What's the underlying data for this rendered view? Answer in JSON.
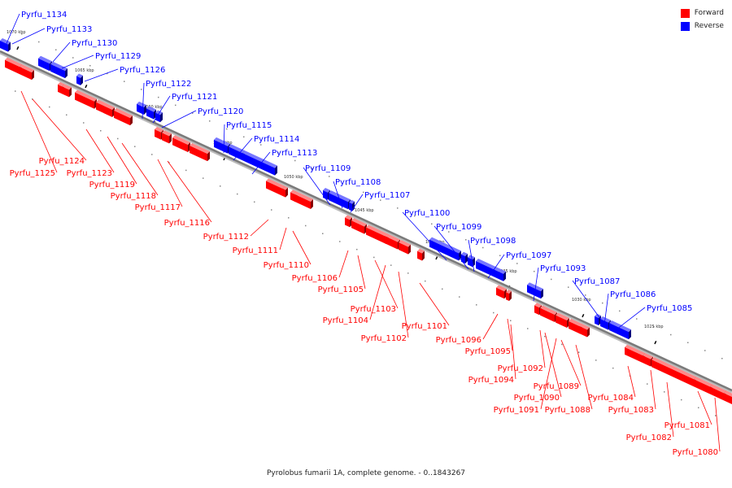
{
  "caption": "Pyrolobus fumarii 1A, complete genome. - 0..1843267",
  "legend": {
    "forward_label": "Forward",
    "reverse_label": "Reverse",
    "forward_color": "#ff0000",
    "reverse_color": "#0000ff"
  },
  "scale_ticks": [
    "1070 kbp",
    "1065 kbp",
    "1060 kbp",
    "1055 kbp",
    "1050 kbp",
    "1045 kbp",
    "1040 kbp",
    "1035 kbp",
    "1030 kbp",
    "1025 kbp"
  ],
  "forward_genes": [
    "Pyrfu_1125",
    "Pyrfu_1124",
    "Pyrfu_1123",
    "Pyrfu_1119",
    "Pyrfu_1118",
    "Pyrfu_1117",
    "Pyrfu_1116",
    "Pyrfu_1112",
    "Pyrfu_1111",
    "Pyrfu_1110",
    "Pyrfu_1106",
    "Pyrfu_1105",
    "Pyrfu_1103",
    "Pyrfu_1104",
    "Pyrfu_1102",
    "Pyrfu_1101",
    "Pyrfu_1096",
    "Pyrfu_1095",
    "Pyrfu_1094",
    "Pyrfu_1092",
    "Pyrfu_1090",
    "Pyrfu_1091",
    "Pyrfu_1089",
    "Pyrfu_1088",
    "Pyrfu_1084",
    "Pyrfu_1083",
    "Pyrfu_1082",
    "Pyrfu_1081",
    "Pyrfu_1080"
  ],
  "reverse_genes": [
    "Pyrfu_1134",
    "Pyrfu_1133",
    "Pyrfu_1130",
    "Pyrfu_1129",
    "Pyrfu_1126",
    "Pyrfu_1122",
    "Pyrfu_1121",
    "Pyrfu_1120",
    "Pyrfu_1115",
    "Pyrfu_1114",
    "Pyrfu_1113",
    "Pyrfu_1109",
    "Pyrfu_1108",
    "Pyrfu_1107",
    "Pyrfu_1100",
    "Pyrfu_1099",
    "Pyrfu_1098",
    "Pyrfu_1097",
    "Pyrfu_1093",
    "Pyrfu_1087",
    "Pyrfu_1086",
    "Pyrfu_1085"
  ]
}
